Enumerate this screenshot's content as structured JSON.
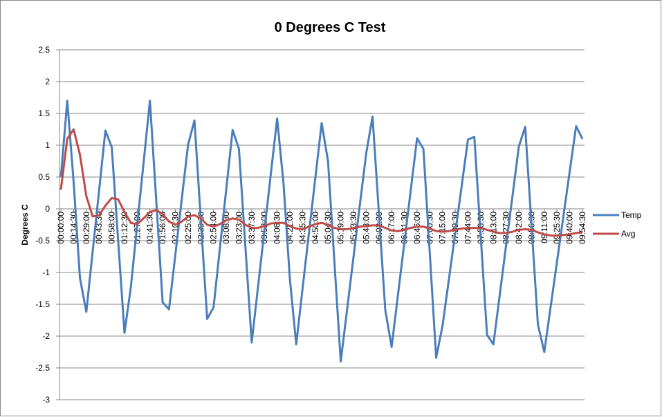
{
  "chart_data": {
    "type": "line",
    "title": "0 Degrees C Test",
    "y_label": "Degrees C",
    "categories": [
      "00:00:00",
      null,
      "00:14:30",
      null,
      "00:29:00",
      null,
      "00:43:30",
      null,
      "00:58:00",
      null,
      "01:12:30",
      null,
      "01:27:00",
      null,
      "01:41:30",
      null,
      "01:56:00",
      null,
      "02:10:30",
      null,
      "02:25:00",
      null,
      "02:39:30",
      null,
      "02:54:00",
      null,
      "03:08:30",
      null,
      "03:23:00",
      null,
      "03:37:30",
      null,
      "03:52:00",
      null,
      "04:06:30",
      null,
      "04:21:00",
      null,
      "04:35:30",
      null,
      "04:50:00",
      null,
      "05:04:30",
      null,
      "05:19:00",
      null,
      "05:33:30",
      null,
      "05:48:00",
      null,
      "06:02:30",
      null,
      "06:17:00",
      null,
      "06:31:30",
      null,
      "06:46:00",
      null,
      "07:00:30",
      null,
      "07:15:00",
      null,
      "07:29:30",
      null,
      "07:44:00",
      null,
      "07:58:30",
      null,
      "08:13:00",
      null,
      "08:27:30",
      null,
      "08:42:00",
      null,
      "08:56:30",
      null,
      "09:11:00",
      null,
      "09:25:30",
      null,
      "09:40:00",
      null,
      "09:54:30"
    ],
    "series": [
      {
        "name": "Temp",
        "color": "#4a7ebb",
        "values": [
          0.5,
          1.7,
          0.43,
          -1.09,
          -1.62,
          -0.67,
          0.28,
          1.23,
          0.97,
          -0.49,
          -1.95,
          -1.23,
          -0.25,
          0.72,
          1.7,
          0.12,
          -1.47,
          -1.58,
          -0.72,
          0.15,
          1.01,
          1.39,
          -0.17,
          -1.73,
          -1.55,
          -0.62,
          0.31,
          1.24,
          0.94,
          -0.58,
          -2.1,
          -1.22,
          -0.34,
          0.54,
          1.42,
          0.4,
          -1.1,
          -2.13,
          -1.25,
          -0.38,
          0.48,
          1.35,
          0.75,
          -0.83,
          -2.4,
          -1.58,
          -0.76,
          0.06,
          0.87,
          1.45,
          -0.07,
          -1.59,
          -2.17,
          -1.35,
          -0.53,
          0.29,
          1.11,
          0.94,
          -0.7,
          -2.34,
          -1.84,
          -1.11,
          -0.38,
          0.35,
          1.09,
          1.13,
          -0.42,
          -1.98,
          -2.13,
          -1.35,
          -0.57,
          0.2,
          0.98,
          1.29,
          -0.27,
          -1.82,
          -2.25,
          -1.54,
          -0.83,
          -0.12,
          0.59,
          1.3,
          1.1
        ]
      },
      {
        "name": "Avg",
        "color": "#be4b48",
        "values": [
          0.3,
          1.1,
          1.25,
          0.85,
          0.2,
          -0.12,
          -0.1,
          0.05,
          0.17,
          0.15,
          -0.05,
          -0.22,
          -0.24,
          -0.15,
          -0.05,
          -0.02,
          -0.08,
          -0.2,
          -0.25,
          -0.2,
          -0.12,
          -0.1,
          -0.15,
          -0.25,
          -0.28,
          -0.24,
          -0.18,
          -0.15,
          -0.17,
          -0.25,
          -0.3,
          -0.3,
          -0.27,
          -0.23,
          -0.22,
          -0.22,
          -0.27,
          -0.31,
          -0.32,
          -0.28,
          -0.24,
          -0.22,
          -0.25,
          -0.3,
          -0.32,
          -0.32,
          -0.3,
          -0.28,
          -0.27,
          -0.26,
          -0.26,
          -0.3,
          -0.34,
          -0.35,
          -0.33,
          -0.3,
          -0.28,
          -0.28,
          -0.31,
          -0.35,
          -0.36,
          -0.35,
          -0.33,
          -0.31,
          -0.3,
          -0.3,
          -0.3,
          -0.33,
          -0.36,
          -0.38,
          -0.38,
          -0.36,
          -0.33,
          -0.32,
          -0.33,
          -0.37,
          -0.4,
          -0.42,
          -0.42,
          -0.41,
          -0.4,
          -0.38,
          -0.37
        ]
      }
    ],
    "ylim": [
      -3,
      2.5
    ],
    "yticks": [
      2.5,
      2,
      1.5,
      1,
      0.5,
      0,
      -0.5,
      -1,
      -1.5,
      -2,
      -2.5,
      -3
    ],
    "grid": true,
    "legend": "right"
  }
}
